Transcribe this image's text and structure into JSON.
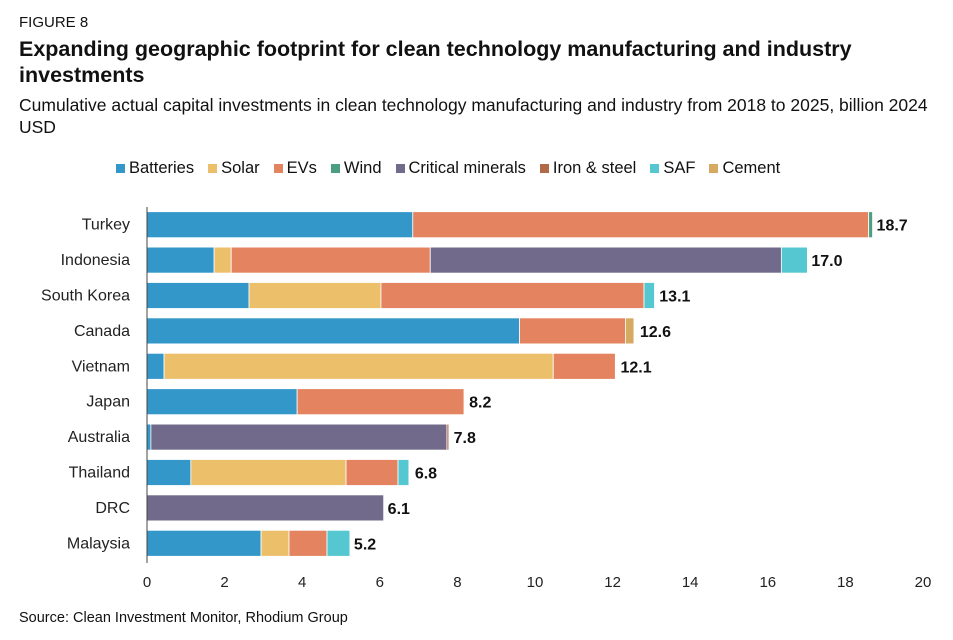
{
  "figure_label": "FIGURE 8",
  "chart_data": {
    "type": "bar",
    "orientation": "horizontal",
    "stacked": true,
    "title": "Expanding geographic footprint for clean technology manufacturing and industry investments",
    "subtitle": "Cumulative actual capital investments in clean technology manufacturing and industry from 2018 to 2025, billion 2024 USD",
    "categories": [
      "Turkey",
      "Indonesia",
      "South Korea",
      "Canada",
      "Vietnam",
      "Japan",
      "Australia",
      "Thailand",
      "DRC",
      "Malaysia"
    ],
    "series": [
      {
        "name": "Batteries",
        "color": "#3497c9",
        "values": [
          6.85,
          1.73,
          2.63,
          9.6,
          0.44,
          3.87,
          0.1,
          1.13,
          0,
          2.94
        ]
      },
      {
        "name": "Solar",
        "color": "#ecbf6b",
        "values": [
          0,
          0.44,
          3.4,
          0,
          10.03,
          0,
          0,
          4.0,
          0,
          0.72
        ]
      },
      {
        "name": "EVs",
        "color": "#e4835f",
        "values": [
          11.75,
          5.13,
          6.78,
          2.73,
          1.6,
          4.3,
          0,
          1.34,
          0,
          0.98
        ]
      },
      {
        "name": "Wind",
        "color": "#4b9e84",
        "values": [
          0.1,
          0,
          0,
          0,
          0,
          0,
          0,
          0,
          0,
          0
        ]
      },
      {
        "name": "Critical minerals",
        "color": "#726a8a",
        "values": [
          0,
          9.05,
          0,
          0,
          0,
          0,
          7.63,
          0,
          6.1,
          0
        ]
      },
      {
        "name": "Iron & steel",
        "color": "#b06a48",
        "values": [
          0,
          0,
          0,
          0,
          0,
          0,
          0.05,
          0,
          0,
          0
        ]
      },
      {
        "name": "SAF",
        "color": "#55c7d0",
        "values": [
          0,
          0.67,
          0.27,
          0,
          0,
          0,
          0,
          0.28,
          0,
          0.59
        ]
      },
      {
        "name": "Cement",
        "color": "#d7aa63",
        "values": [
          0,
          0,
          0,
          0.22,
          0,
          0,
          0,
          0,
          0,
          0
        ]
      }
    ],
    "totals": [
      "18.7",
      "17.0",
      "13.1",
      "12.6",
      "12.1",
      "8.2",
      "7.8",
      "6.8",
      "6.1",
      "5.2"
    ],
    "xlim": [
      0,
      20
    ],
    "xticks": [
      "0",
      "2",
      "4",
      "6",
      "8",
      "10",
      "12",
      "14",
      "16",
      "18",
      "20"
    ],
    "grid": false,
    "legend_position": "top"
  },
  "source": "Source: Clean Investment Monitor, Rhodium Group"
}
